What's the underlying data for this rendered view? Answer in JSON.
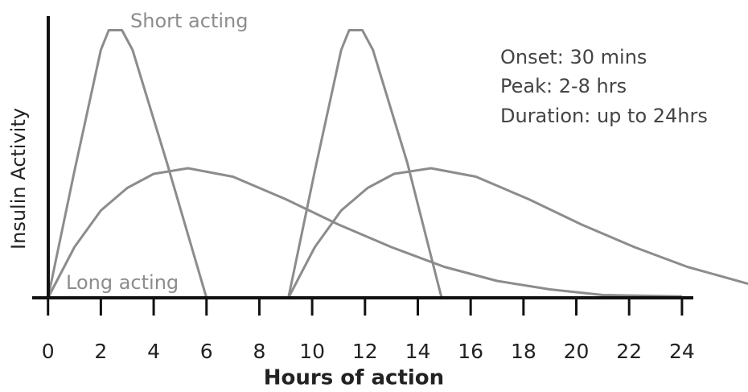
{
  "chart_data": {
    "type": "line",
    "xlabel": "Hours of action",
    "ylabel": "Insulin Activity",
    "annotations": [
      "Short acting",
      "Long acting"
    ],
    "info": [
      "Onset: 30 mins",
      "Peak: 2-8 hrs",
      "Duration: up to 24hrs"
    ],
    "xlim": [
      -0.6,
      26.5
    ],
    "ylim": [
      0,
      100
    ],
    "xticks": [
      0,
      2,
      4,
      6,
      8,
      10,
      12,
      14,
      16,
      18,
      20,
      22,
      24
    ],
    "series": [
      {
        "color": "#8c8c8c",
        "x": [
          0,
          1,
          2,
          2.3,
          2.8,
          3.2,
          4.5,
          6
        ],
        "values": [
          0,
          45,
          88,
          95,
          95,
          88,
          48,
          0
        ]
      },
      {
        "color": "#8c8c8c",
        "x": [
          0,
          1,
          2,
          3,
          4,
          5.3,
          7,
          9,
          11,
          13,
          15,
          17,
          19,
          21,
          24
        ],
        "values": [
          0,
          18,
          31,
          39,
          44,
          46,
          43,
          35,
          26,
          18,
          11,
          6,
          3,
          1,
          0.5
        ]
      },
      {
        "color": "#8c8c8c",
        "x": [
          9.1,
          10.1,
          11.1,
          11.4,
          11.9,
          12.3,
          13.6,
          14.9
        ],
        "values": [
          0,
          45,
          88,
          95,
          95,
          88,
          48,
          0
        ]
      },
      {
        "color": "#8c8c8c",
        "x": [
          9.1,
          10.1,
          11.1,
          12.1,
          13.1,
          14.5,
          16.2,
          18.2,
          20.2,
          22.2,
          24.2,
          26.5
        ],
        "values": [
          0,
          18,
          31,
          39,
          44,
          46,
          43,
          35,
          26,
          18,
          11,
          5
        ]
      }
    ]
  }
}
